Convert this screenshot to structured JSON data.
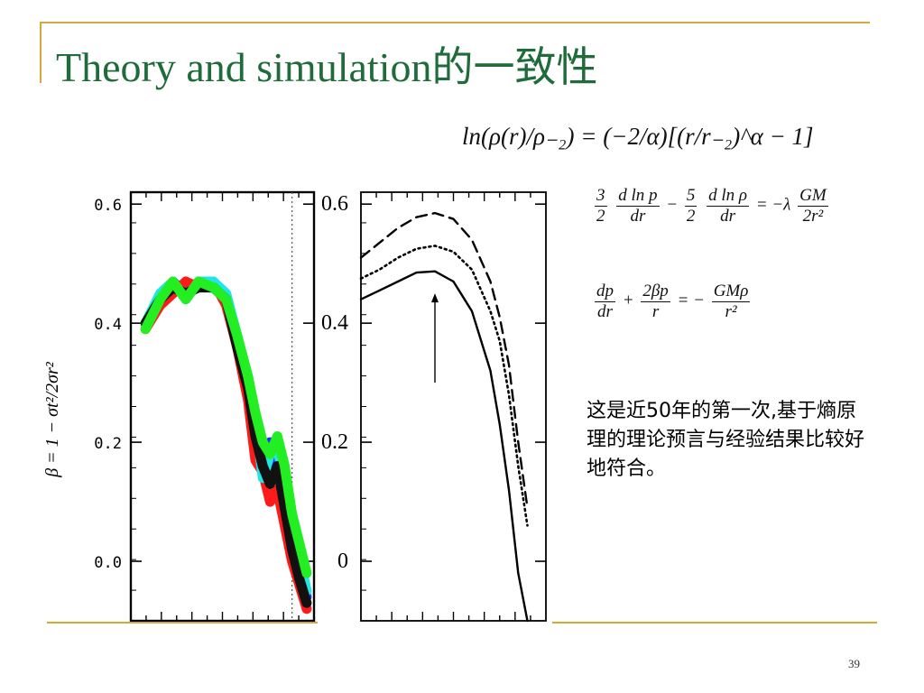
{
  "slide": {
    "title": "Theory and simulation的一致性",
    "page_number": "39",
    "note": "这是近50年的第一次,基于熵原理的理论预言与经验结果比较好地符合。",
    "accent_color": "#d4a93a",
    "title_color": "#1f6b3a"
  },
  "formulas": {
    "f1": "ln(ρ(r)/ρ₋₂) = (−2/α)[(r/r₋₂)^α − 1]",
    "f2": {
      "a_num": "3",
      "a_den": "2",
      "b_num": "d ln p",
      "b_den": "dr",
      "c_num": "5",
      "c_den": "2",
      "d_num": "d ln ρ",
      "d_den": "dr",
      "rhs_prefix": "= −λ",
      "e_num": "GM",
      "e_den": "2r²"
    },
    "f3": {
      "a_num": "dp",
      "a_den": "dr",
      "plus": "+",
      "b_num": "2βp",
      "b_den": "r",
      "eq": "= −",
      "c_num": "GMρ",
      "c_den": "r²"
    }
  },
  "chart_data": [
    {
      "type": "line",
      "ylabel": "β = 1 − σt²/2σr²",
      "ylim": [
        -0.1,
        0.62
      ],
      "yticks": [
        0.6,
        0.4,
        0.2,
        0.0
      ],
      "ytick_labels": [
        "0.6",
        "0.4",
        "0.2",
        "0.0"
      ],
      "xlim": [
        0,
        1
      ],
      "vline_x": 0.88,
      "series": [
        {
          "color": "#2a2aff",
          "x": [
            0.08,
            0.16,
            0.23,
            0.3,
            0.37,
            0.45,
            0.52,
            0.58,
            0.64,
            0.68,
            0.72,
            0.76,
            0.8,
            0.84,
            0.88,
            0.92,
            0.96
          ],
          "y": [
            0.4,
            0.44,
            0.47,
            0.45,
            0.47,
            0.46,
            0.44,
            0.37,
            0.3,
            0.22,
            0.18,
            0.2,
            0.15,
            0.1,
            0.03,
            -0.02,
            -0.06
          ]
        },
        {
          "color": "#ff1a1a",
          "x": [
            0.08,
            0.16,
            0.23,
            0.3,
            0.37,
            0.45,
            0.52,
            0.58,
            0.64,
            0.68,
            0.72,
            0.76,
            0.8,
            0.84,
            0.88,
            0.92,
            0.96
          ],
          "y": [
            0.39,
            0.43,
            0.45,
            0.47,
            0.46,
            0.47,
            0.43,
            0.36,
            0.27,
            0.17,
            0.15,
            0.1,
            0.12,
            0.06,
            0.0,
            -0.04,
            -0.08
          ]
        },
        {
          "color": "#20e6e6",
          "x": [
            0.08,
            0.16,
            0.23,
            0.3,
            0.37,
            0.45,
            0.52,
            0.58,
            0.64,
            0.68,
            0.72,
            0.76,
            0.8,
            0.84,
            0.88,
            0.92,
            0.96
          ],
          "y": [
            0.4,
            0.45,
            0.47,
            0.44,
            0.47,
            0.47,
            0.45,
            0.38,
            0.31,
            0.24,
            0.14,
            0.18,
            0.19,
            0.13,
            0.05,
            0.01,
            -0.05
          ]
        },
        {
          "color": "#111111",
          "x": [
            0.08,
            0.16,
            0.23,
            0.3,
            0.37,
            0.45,
            0.52,
            0.58,
            0.64,
            0.68,
            0.72,
            0.76,
            0.8,
            0.84,
            0.88,
            0.92,
            0.96
          ],
          "y": [
            0.4,
            0.44,
            0.46,
            0.45,
            0.46,
            0.46,
            0.44,
            0.36,
            0.29,
            0.21,
            0.16,
            0.13,
            0.16,
            0.09,
            0.02,
            -0.03,
            -0.07
          ]
        },
        {
          "color": "#22ee22",
          "x": [
            0.08,
            0.16,
            0.23,
            0.3,
            0.37,
            0.45,
            0.52,
            0.58,
            0.64,
            0.68,
            0.72,
            0.76,
            0.8,
            0.84,
            0.88,
            0.92,
            0.96
          ],
          "y": [
            0.39,
            0.44,
            0.47,
            0.44,
            0.47,
            0.46,
            0.44,
            0.38,
            0.31,
            0.25,
            0.2,
            0.18,
            0.21,
            0.16,
            0.08,
            0.03,
            -0.02
          ]
        }
      ]
    },
    {
      "type": "line",
      "ylim": [
        -0.1,
        0.62
      ],
      "yticks": [
        0.6,
        0.4,
        0.2,
        0.0
      ],
      "ytick_labels": [
        "0.6",
        "0.4",
        "0.2",
        "0"
      ],
      "xlim": [
        0,
        1
      ],
      "arrow": {
        "x": 0.4,
        "y_from": 0.3,
        "y_to": 0.45
      },
      "series": [
        {
          "style": "solid",
          "x": [
            0,
            0.1,
            0.2,
            0.3,
            0.4,
            0.5,
            0.6,
            0.7,
            0.75,
            0.8,
            0.85,
            0.9
          ],
          "y": [
            0.44,
            0.455,
            0.47,
            0.485,
            0.487,
            0.47,
            0.42,
            0.32,
            0.23,
            0.12,
            -0.02,
            -0.1
          ]
        },
        {
          "style": "dotted",
          "x": [
            0,
            0.1,
            0.2,
            0.3,
            0.4,
            0.5,
            0.6,
            0.7,
            0.75,
            0.8,
            0.85,
            0.9
          ],
          "y": [
            0.475,
            0.49,
            0.51,
            0.525,
            0.53,
            0.52,
            0.49,
            0.42,
            0.37,
            0.28,
            0.16,
            0.06
          ]
        },
        {
          "style": "dashed",
          "x": [
            0,
            0.1,
            0.2,
            0.3,
            0.4,
            0.5,
            0.6,
            0.7,
            0.75,
            0.8,
            0.85,
            0.9
          ],
          "y": [
            0.51,
            0.535,
            0.56,
            0.578,
            0.585,
            0.575,
            0.54,
            0.47,
            0.41,
            0.33,
            0.2,
            0.09
          ]
        }
      ]
    }
  ]
}
